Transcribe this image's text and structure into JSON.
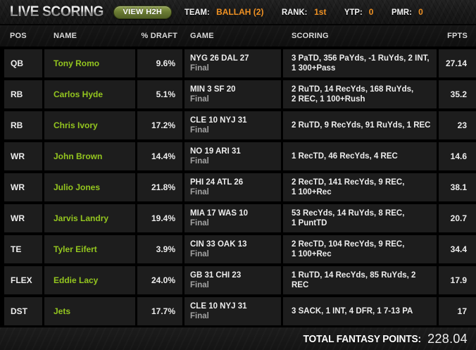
{
  "topbar": {
    "title": "LIVE SCORING",
    "view_h2h_label": "VIEW H2H",
    "stats": [
      {
        "label": "TEAM:",
        "value": "BALLAH (2)"
      },
      {
        "label": "RANK:",
        "value": "1st"
      },
      {
        "label": "YTP:",
        "value": "0"
      },
      {
        "label": "PMR:",
        "value": "0"
      }
    ]
  },
  "table": {
    "columns": [
      "POS",
      "NAME",
      "% DRAFT",
      "GAME",
      "SCORING",
      "FPTS"
    ],
    "rows": [
      {
        "pos": "QB",
        "name": "Tony Romo",
        "draft": "9.6%",
        "game": [
          "NYG 26 DAL 27",
          "Final"
        ],
        "scoring": [
          "3 PaTD, 356 PaYds, -1 RuYds, 2 INT,",
          "1 300+Pass"
        ],
        "fpts": "27.14"
      },
      {
        "pos": "RB",
        "name": "Carlos Hyde",
        "draft": "5.1%",
        "game": [
          "MIN 3 SF 20",
          "Final"
        ],
        "scoring": [
          "2 RuTD, 14 RecYds, 168 RuYds,",
          "2 REC, 1 100+Rush"
        ],
        "fpts": "35.2"
      },
      {
        "pos": "RB",
        "name": "Chris Ivory",
        "draft": "17.2%",
        "game": [
          "CLE 10 NYJ 31",
          "Final"
        ],
        "scoring": [
          "2 RuTD, 9 RecYds, 91 RuYds, 1 REC"
        ],
        "fpts": "23"
      },
      {
        "pos": "WR",
        "name": "John Brown",
        "draft": "14.4%",
        "game": [
          "NO 19 ARI 31",
          "Final"
        ],
        "scoring": [
          "1 RecTD, 46 RecYds, 4 REC"
        ],
        "fpts": "14.6"
      },
      {
        "pos": "WR",
        "name": "Julio Jones",
        "draft": "21.8%",
        "game": [
          "PHI 24 ATL 26",
          "Final"
        ],
        "scoring": [
          "2 RecTD, 141 RecYds, 9 REC,",
          "1 100+Rec"
        ],
        "fpts": "38.1"
      },
      {
        "pos": "WR",
        "name": "Jarvis Landry",
        "draft": "19.4%",
        "game": [
          "MIA 17 WAS 10",
          "Final"
        ],
        "scoring": [
          "53 RecYds, 14 RuYds, 8 REC,",
          "1 PuntTD"
        ],
        "fpts": "20.7"
      },
      {
        "pos": "TE",
        "name": "Tyler Eifert",
        "draft": "3.9%",
        "game": [
          "CIN 33 OAK 13",
          "Final"
        ],
        "scoring": [
          "2 RecTD, 104 RecYds, 9 REC,",
          "1 100+Rec"
        ],
        "fpts": "34.4"
      },
      {
        "pos": "FLEX",
        "name": "Eddie Lacy",
        "draft": "24.0%",
        "game": [
          "GB 31 CHI 23",
          "Final"
        ],
        "scoring": [
          "1 RuTD, 14 RecYds, 85 RuYds, 2 REC"
        ],
        "fpts": "17.9"
      },
      {
        "pos": "DST",
        "name": "Jets",
        "draft": "17.7%",
        "game": [
          "CLE 10 NYJ 31",
          "Final"
        ],
        "scoring": [
          "3 SACK, 1 INT, 4 DFR, 1 7-13 PA"
        ],
        "fpts": "17"
      }
    ]
  },
  "footer": {
    "label": "TOTAL FANTASY POINTS:",
    "value": "228.04"
  },
  "colors": {
    "accent_green": "#94c61f",
    "accent_orange": "#ef9123"
  }
}
